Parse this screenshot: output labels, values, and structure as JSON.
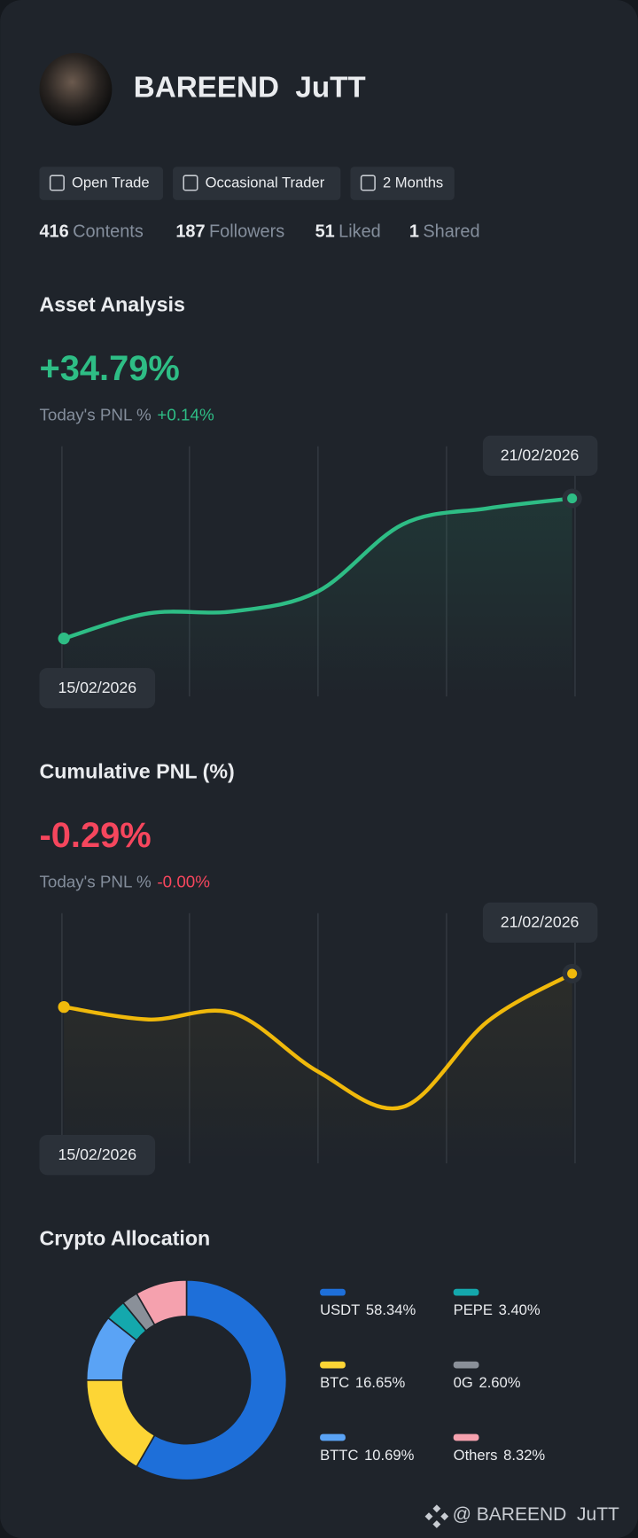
{
  "profile": {
    "name": "BAREEND  JuTT",
    "tags": [
      "Open Trade",
      "Occasional Trader",
      "2 Months"
    ],
    "stats": [
      {
        "value": 416,
        "label": "Contents"
      },
      {
        "value": 187,
        "label": "Followers"
      },
      {
        "value": 51,
        "label": "Liked"
      },
      {
        "value": 1,
        "label": "Shared"
      }
    ]
  },
  "chart_data": [
    {
      "type": "line",
      "title": "Asset Analysis",
      "headline": "+34.79%",
      "subtitle_label": "Today's PNL %",
      "subtitle_value": "+0.14%",
      "tone": "#2ebd85",
      "x": [
        "15/02/2026",
        null,
        null,
        null,
        null,
        null,
        "21/02/2026"
      ],
      "series": [
        {
          "color": "#2ebd85",
          "values": [
            20.79,
            23.3,
            23.5,
            25.5,
            32.2,
            33.8,
            34.79
          ]
        }
      ],
      "ylim": [
        15,
        40
      ]
    },
    {
      "type": "line",
      "title": "Cumulative PNL (%)",
      "headline": "-0.29%",
      "subtitle_label": "Today's PNL %",
      "subtitle_value": "-0.00%",
      "tone": "#f6465d",
      "x": [
        "15/02/2026",
        null,
        null,
        null,
        null,
        null,
        "21/02/2026"
      ],
      "series": [
        {
          "color": "#f0b90b",
          "values": [
            -0.45,
            -0.51,
            -0.48,
            -0.76,
            -0.93,
            -0.52,
            -0.29
          ]
        }
      ],
      "ylim": [
        -1.2,
        0
      ]
    },
    {
      "type": "donut",
      "title": "Crypto Allocation",
      "categories": [
        "USDT",
        "BTC",
        "BTTC",
        "PEPE",
        "0G",
        "Others"
      ],
      "values": [
        58.34,
        16.65,
        10.69,
        3.4,
        2.6,
        8.32
      ],
      "value_labels": [
        "58.34%",
        "16.65%",
        "10.69%",
        "3.40%",
        "2.60%",
        "8.32%"
      ],
      "colors": [
        "#1e6fd9",
        "#fdd535",
        "#5aa3f5",
        "#14a8ad",
        "#8a9099",
        "#f5a1ae"
      ]
    }
  ],
  "footer": "@ BAREEND  JuTT"
}
